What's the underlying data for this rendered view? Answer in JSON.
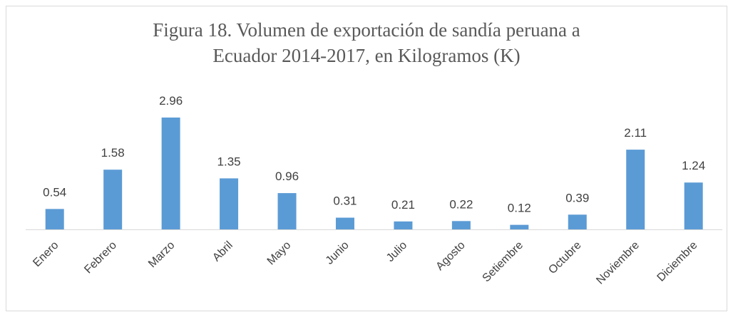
{
  "chart_data": {
    "type": "bar",
    "title": "Figura 18. Volumen de exportación de sandía peruana a Ecuador 2014-2017, en Kilogramos (K)",
    "categories": [
      "Enero",
      "Febrero",
      "Marzo",
      "Abril",
      "Mayo",
      "Junio",
      "Julio",
      "Agosto",
      "Setiembre",
      "Octubre",
      "Noviembre",
      "Diciembre"
    ],
    "values": [
      0.54,
      1.58,
      2.96,
      1.35,
      0.96,
      0.31,
      0.21,
      0.22,
      0.12,
      0.39,
      2.11,
      1.24
    ],
    "color": "#5b9bd5"
  }
}
